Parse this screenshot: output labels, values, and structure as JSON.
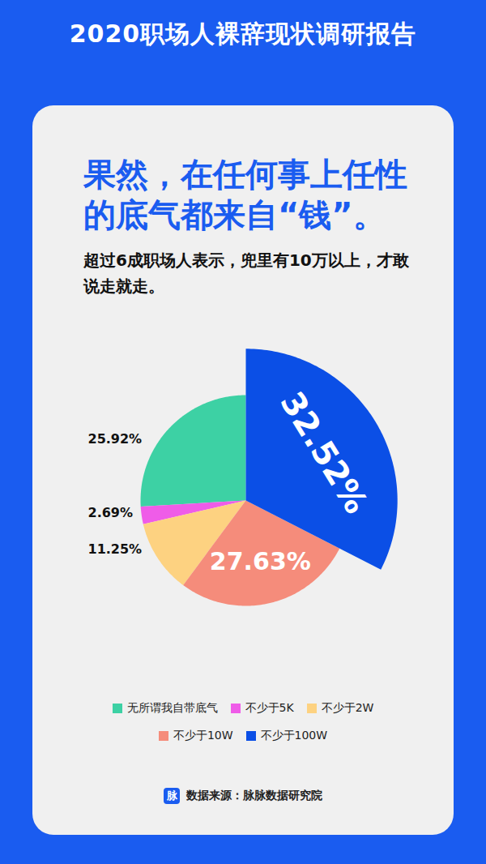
{
  "chart_data": {
    "type": "pie",
    "title": "2020职场人裸辞现状调研报告",
    "headline": "果然，在任何事上任性的底气都来自“钱”。",
    "subtitle": "超过6成职场人表示，兜里有10万以上，才敢说走就走。",
    "categories": [
      "无所谓我自带底气",
      "不少于5K",
      "不少于2W",
      "不少于10W",
      "不少于100W"
    ],
    "values": [
      25.92,
      2.69,
      11.25,
      27.63,
      32.52
    ],
    "value_labels": [
      "25.92%",
      "2.69%",
      "11.25%",
      "27.63%",
      "32.52%"
    ],
    "colors": [
      "#3dd1a4",
      "#ef5ce8",
      "#fdd281",
      "#f58c7b",
      "#0b4fe6"
    ],
    "data_labels": true,
    "legend": "bottom",
    "source_icon": "脉",
    "source": "数据来源：脉脉数据研究院"
  }
}
